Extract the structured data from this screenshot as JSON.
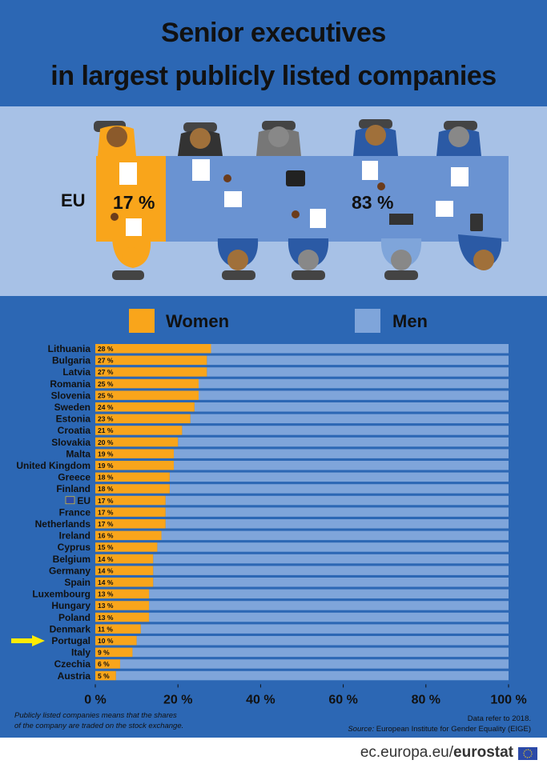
{
  "title": {
    "line1": "Senior executives",
    "line2": "in largest publicly listed companies"
  },
  "infographic": {
    "eu_label": "EU",
    "women_pct": "17 %",
    "men_pct": "83 %"
  },
  "legend": {
    "women": "Women",
    "men": "Men"
  },
  "colors": {
    "women": "#f9a51b",
    "men": "#7fa5da",
    "band": "#2c67b4",
    "light": "#a7c1e6",
    "arrow": "#ffeb00"
  },
  "footnote": {
    "line1": "Publicly listed companies means that the shares",
    "line2": "of the company are traded on the stock exchange."
  },
  "source": {
    "line1": "Data refer to 2018.",
    "label": "Source:",
    "text": "European Institute for Gender Equality (EIGE)"
  },
  "brand": {
    "site": "ec.europa.eu/",
    "name": "eurostat"
  },
  "chart_data": {
    "type": "bar",
    "orientation": "horizontal",
    "stacked": true,
    "title": "Senior executives in largest publicly listed companies",
    "categories": [
      "Lithuania",
      "Bulgaria",
      "Latvia",
      "Romania",
      "Slovenia",
      "Sweden",
      "Estonia",
      "Croatia",
      "Slovakia",
      "Malta",
      "United Kingdom",
      "Greece",
      "Finland",
      "EU",
      "France",
      "Netherlands",
      "Ireland",
      "Cyprus",
      "Belgium",
      "Germany",
      "Spain",
      "Luxembourg",
      "Hungary",
      "Poland",
      "Denmark",
      "Portugal",
      "Italy",
      "Czechia",
      "Austria"
    ],
    "series": [
      {
        "name": "Women",
        "values": [
          28,
          27,
          27,
          25,
          25,
          24,
          23,
          21,
          20,
          19,
          19,
          18,
          18,
          17,
          17,
          17,
          16,
          15,
          14,
          14,
          14,
          13,
          13,
          13,
          11,
          10,
          9,
          6,
          5
        ]
      },
      {
        "name": "Men",
        "values": [
          72,
          73,
          73,
          75,
          75,
          76,
          77,
          79,
          80,
          81,
          81,
          82,
          82,
          83,
          83,
          83,
          84,
          85,
          86,
          86,
          86,
          87,
          87,
          87,
          89,
          90,
          91,
          94,
          95
        ]
      }
    ],
    "value_labels": [
      "28 %",
      "27 %",
      "27 %",
      "25 %",
      "25 %",
      "24 %",
      "23 %",
      "21 %",
      "20 %",
      "19 %",
      "19 %",
      "18 %",
      "18 %",
      "17 %",
      "17 %",
      "17 %",
      "16 %",
      "15 %",
      "14 %",
      "14 %",
      "14 %",
      "13 %",
      "13 %",
      "13 %",
      "11 %",
      "10 %",
      "9 %",
      "6 %",
      "5 %"
    ],
    "xlim": [
      0,
      100
    ],
    "xticks": [
      0,
      20,
      40,
      60,
      80,
      100
    ],
    "xtick_labels": [
      "0 %",
      "20 %",
      "40 %",
      "60 %",
      "80 %",
      "100 %"
    ],
    "highlight": "Portugal",
    "legend_position": "top"
  }
}
